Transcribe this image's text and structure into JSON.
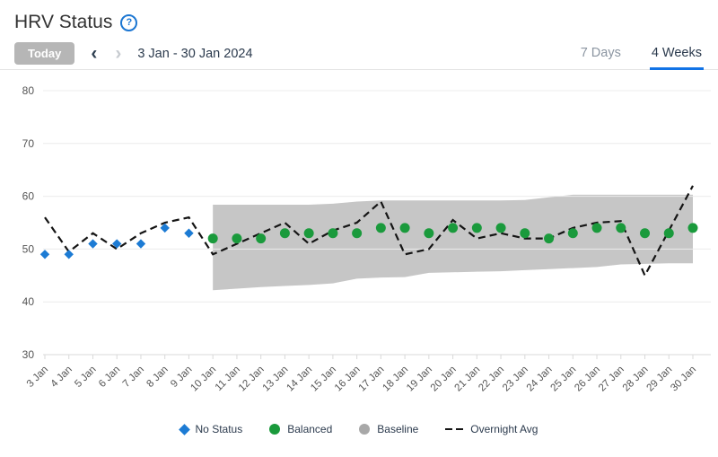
{
  "header": {
    "title": "HRV Status",
    "help_label": "?"
  },
  "toolbar": {
    "today_label": "Today",
    "prev_icon": "‹",
    "next_icon": "›",
    "date_range": "3 Jan - 30 Jan 2024",
    "tabs": [
      {
        "label": "7 Days",
        "active": false
      },
      {
        "label": "4 Weeks",
        "active": true
      }
    ]
  },
  "legend": [
    {
      "label": "No Status",
      "marker": "diamond",
      "color": "#1c7bd4"
    },
    {
      "label": "Balanced",
      "marker": "circle",
      "color": "#1a9a3c"
    },
    {
      "label": "Baseline",
      "marker": "circle",
      "color": "#a8a8a8"
    },
    {
      "label": "Overnight Avg",
      "marker": "dash",
      "color": "#141414"
    }
  ],
  "chart_data": {
    "type": "line",
    "title": "HRV Status - 4 Weeks",
    "x": [
      "3 Jan",
      "4 Jan",
      "5 Jan",
      "6 Jan",
      "7 Jan",
      "8 Jan",
      "9 Jan",
      "10 Jan",
      "11 Jan",
      "12 Jan",
      "13 Jan",
      "14 Jan",
      "15 Jan",
      "16 Jan",
      "17 Jan",
      "18 Jan",
      "19 Jan",
      "20 Jan",
      "21 Jan",
      "22 Jan",
      "23 Jan",
      "24 Jan",
      "25 Jan",
      "26 Jan",
      "27 Jan",
      "28 Jan",
      "29 Jan",
      "30 Jan"
    ],
    "ylim": [
      30,
      80
    ],
    "yticks": [
      30,
      40,
      50,
      60,
      70,
      80
    ],
    "grid": true,
    "legend_position": "bottom",
    "series": [
      {
        "name": "No Status",
        "type": "scatter",
        "marker": "diamond",
        "color": "#1c7bd4",
        "values": [
          49,
          49,
          51,
          51,
          51,
          54,
          53,
          null,
          null,
          null,
          null,
          null,
          null,
          null,
          null,
          null,
          null,
          null,
          null,
          null,
          null,
          null,
          null,
          null,
          null,
          null,
          null,
          null
        ]
      },
      {
        "name": "Balanced",
        "type": "scatter",
        "marker": "circle",
        "color": "#1a9a3c",
        "values": [
          null,
          null,
          null,
          null,
          null,
          null,
          null,
          52,
          52,
          52,
          53,
          53,
          53,
          53,
          54,
          54,
          53,
          54,
          54,
          54,
          53,
          52,
          53,
          54,
          54,
          53,
          53,
          54
        ]
      },
      {
        "name": "Baseline",
        "type": "band",
        "color": "#c6c6c6",
        "upper": [
          null,
          null,
          null,
          null,
          null,
          null,
          null,
          58.4,
          58.4,
          58.4,
          58.4,
          58.4,
          58.6,
          59,
          59.2,
          59.2,
          59.2,
          59.2,
          59.2,
          59.2,
          59.3,
          59.8,
          60.3,
          60.3,
          60.3,
          60.3,
          60.3,
          60.3
        ],
        "lower": [
          null,
          null,
          null,
          null,
          null,
          null,
          null,
          42.2,
          42.5,
          42.8,
          43,
          43.2,
          43.5,
          44.4,
          44.6,
          44.7,
          45.5,
          45.6,
          45.7,
          45.8,
          46,
          46.2,
          46.4,
          46.6,
          47.1,
          47.2,
          47.3,
          47.3
        ]
      },
      {
        "name": "Overnight Avg",
        "type": "dashed-line",
        "color": "#141414",
        "values": [
          56,
          49.5,
          53,
          50,
          53,
          55,
          56,
          49,
          51,
          53,
          55,
          51,
          53.5,
          55,
          59,
          49,
          50,
          55.5,
          52,
          53,
          52,
          52,
          54,
          55,
          55.3,
          45,
          53.5,
          62
        ]
      }
    ]
  }
}
